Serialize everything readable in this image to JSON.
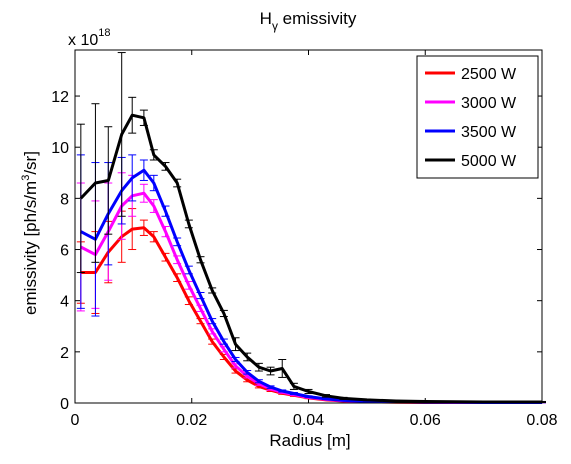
{
  "chart_data": {
    "type": "line",
    "title_main": "H",
    "title_sub": "γ",
    "title_rest": " emissivity",
    "xlabel": "Radius [m]",
    "ylabel_main": "emissivity [ph/s/m",
    "ylabel_sup": "3",
    "ylabel_rest": "/sr]",
    "y_multiplier_base": "x 10",
    "y_multiplier_exp": "18",
    "xlim": [
      0,
      0.08
    ],
    "ylim": [
      0,
      13.8
    ],
    "x_ticks": [
      0,
      0.02,
      0.04,
      0.06,
      0.08
    ],
    "x_tick_labels": [
      "0",
      "0.02",
      "0.04",
      "0.06",
      "0.08"
    ],
    "y_ticks": [
      0,
      2,
      4,
      6,
      8,
      10,
      12
    ],
    "y_tick_labels": [
      "0",
      "2",
      "4",
      "6",
      "8",
      "10",
      "12"
    ],
    "grid": false,
    "legend_position": "top-right",
    "x": [
      0.001,
      0.0035,
      0.0057,
      0.008,
      0.0098,
      0.0118,
      0.0135,
      0.0155,
      0.0175,
      0.0195,
      0.0215,
      0.0235,
      0.0255,
      0.0275,
      0.0295,
      0.0315,
      0.0335,
      0.0355,
      0.0375,
      0.04,
      0.043,
      0.046,
      0.05,
      0.055,
      0.06,
      0.065,
      0.07,
      0.075,
      0.08
    ],
    "series": [
      {
        "name": "2500 W",
        "color": "#ff0000",
        "values": [
          5.1,
          5.1,
          5.9,
          6.5,
          6.8,
          6.85,
          6.5,
          5.7,
          4.9,
          4.0,
          3.2,
          2.4,
          1.8,
          1.25,
          0.9,
          0.65,
          0.5,
          0.38,
          0.3,
          0.2,
          0.12,
          0.08,
          0.05,
          0.03,
          0.02,
          0.02,
          0.02,
          0.02,
          0.02
        ],
        "errors": [
          1.2,
          1.6,
          1.2,
          1.0,
          0.8,
          0.3,
          0.2,
          0.15,
          0.15,
          0.15,
          0.1,
          0.1,
          0.1,
          0.08,
          0.07,
          0.06,
          0.05,
          0.04,
          0.04,
          0.03,
          0.02,
          0.02,
          0.02,
          0.01,
          0.01,
          0.01,
          0.01,
          0.01,
          0.01
        ]
      },
      {
        "name": "3000 W",
        "color": "#ff00ff",
        "values": [
          6.1,
          5.8,
          6.7,
          7.7,
          8.1,
          8.2,
          7.7,
          6.7,
          5.6,
          4.6,
          3.7,
          2.8,
          2.1,
          1.45,
          1.05,
          0.75,
          0.55,
          0.42,
          0.33,
          0.22,
          0.14,
          0.09,
          0.06,
          0.04,
          0.03,
          0.02,
          0.02,
          0.02,
          0.02
        ],
        "errors": [
          2.5,
          2.1,
          1.9,
          1.3,
          0.8,
          0.35,
          0.25,
          0.2,
          0.15,
          0.15,
          0.12,
          0.1,
          0.1,
          0.08,
          0.07,
          0.06,
          0.05,
          0.04,
          0.04,
          0.03,
          0.02,
          0.02,
          0.02,
          0.01,
          0.01,
          0.01,
          0.01,
          0.01,
          0.01
        ]
      },
      {
        "name": "3500 W",
        "color": "#0000ff",
        "values": [
          6.7,
          6.4,
          7.4,
          8.3,
          8.8,
          9.1,
          8.6,
          7.5,
          6.3,
          5.2,
          4.2,
          3.2,
          2.4,
          1.7,
          1.2,
          0.85,
          0.62,
          0.47,
          0.37,
          0.25,
          0.16,
          0.1,
          0.07,
          0.05,
          0.03,
          0.03,
          0.02,
          0.02,
          0.02
        ],
        "errors": [
          3.0,
          3.0,
          2.0,
          1.3,
          0.9,
          0.4,
          0.3,
          0.2,
          0.15,
          0.15,
          0.12,
          0.1,
          0.1,
          0.08,
          0.07,
          0.06,
          0.05,
          0.04,
          0.04,
          0.03,
          0.02,
          0.02,
          0.02,
          0.01,
          0.01,
          0.01,
          0.01,
          0.01,
          0.01
        ]
      },
      {
        "name": "5000 W",
        "color": "#000000",
        "values": [
          8.0,
          8.6,
          8.7,
          10.5,
          11.25,
          11.15,
          9.7,
          9.25,
          8.6,
          7.0,
          5.6,
          4.4,
          3.5,
          2.3,
          1.8,
          1.4,
          1.25,
          1.35,
          0.65,
          0.45,
          0.28,
          0.18,
          0.12,
          0.08,
          0.06,
          0.05,
          0.04,
          0.04,
          0.04
        ],
        "errors": [
          2.9,
          3.1,
          2.1,
          3.2,
          0.7,
          0.3,
          0.2,
          0.15,
          0.15,
          0.15,
          0.12,
          0.1,
          0.12,
          0.25,
          0.15,
          0.15,
          0.15,
          0.35,
          0.12,
          0.08,
          0.05,
          0.04,
          0.03,
          0.02,
          0.02,
          0.02,
          0.02,
          0.02,
          0.02
        ]
      }
    ]
  }
}
